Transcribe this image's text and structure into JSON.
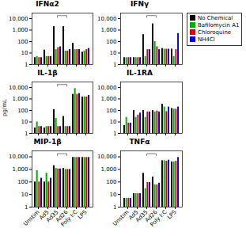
{
  "chart_data": [
    {
      "type": "bar",
      "title": "IFNα2",
      "log": "y",
      "grid": false,
      "tick_labels": "y",
      "categories": [
        "Unstim",
        "Ad5",
        "Ad35",
        "Ad26",
        "Poly I:C",
        "LPS"
      ],
      "series": [
        {
          "name": "No Chemical",
          "color": "#000000",
          "values": [
            4,
            18,
            2000,
            2000,
            70,
            12
          ]
        },
        {
          "name": "Bafilomycin A1",
          "color": "#00aa00",
          "values": [
            5,
            5,
            20,
            15,
            20,
            15
          ]
        },
        {
          "name": "Chloroquine",
          "color": "#dd0000",
          "values": [
            4,
            5,
            30,
            15,
            20,
            20
          ]
        },
        {
          "name": "NH4Cl",
          "color": "#0000dd",
          "values": [
            4,
            5,
            35,
            20,
            20,
            25
          ]
        }
      ],
      "ylim": [
        1,
        30000
      ],
      "yticks": [
        1,
        10,
        100,
        {
          "value": 1000,
          "label": "1,000"
        },
        {
          "value": 10000,
          "label": "10,000"
        }
      ],
      "brackets": [
        [
          "Ad35",
          "Ad26"
        ]
      ]
    },
    {
      "type": "bar",
      "title": "IFNγ",
      "log": "y",
      "grid": false,
      "tick_labels": "y",
      "legend": "right",
      "categories": [
        "Unstim",
        "Ad5",
        "Ad35",
        "Ad26",
        "Poly I:C",
        "LPS"
      ],
      "series": [
        {
          "name": "No Chemical",
          "color": "#000000",
          "values": [
            4,
            4,
            400,
            3500,
            25,
            22
          ]
        },
        {
          "name": "Bafilomycin A1",
          "color": "#00aa00",
          "values": [
            4,
            4,
            5,
            100,
            22,
            5
          ]
        },
        {
          "name": "Chloroquine",
          "color": "#dd0000",
          "values": [
            4,
            4,
            20,
            35,
            22,
            20
          ]
        },
        {
          "name": "NH4Cl",
          "color": "#0000dd",
          "values": [
            4,
            4,
            20,
            20,
            22,
            500
          ]
        }
      ],
      "ylim": [
        1,
        30000
      ],
      "yticks": [
        1,
        10,
        100,
        {
          "value": 1000,
          "label": "1,000"
        },
        {
          "value": 10000,
          "label": "10,000"
        }
      ],
      "brackets": [
        [
          "Ad35",
          "Ad26"
        ]
      ]
    },
    {
      "type": "bar",
      "title": "IL-1β",
      "ylabel": "pg/mL",
      "log": "y",
      "grid": false,
      "tick_labels": "y",
      "categories": [
        "Unstim",
        "Ad5",
        "Ad35",
        "Ad26",
        "Poly I:C",
        "LPS"
      ],
      "series": [
        {
          "name": "No Chemical",
          "color": "#000000",
          "values": [
            3,
            3,
            120,
            30,
            2500,
            1500
          ]
        },
        {
          "name": "Bafilomycin A1",
          "color": "#00aa00",
          "values": [
            10,
            4,
            20,
            4,
            8000,
            1500
          ]
        },
        {
          "name": "Chloroquine",
          "color": "#dd0000",
          "values": [
            4,
            4,
            4,
            4,
            2500,
            1500
          ]
        },
        {
          "name": "NH4Cl",
          "color": "#0000dd",
          "values": [
            4,
            4,
            4,
            4,
            3000,
            2000
          ]
        }
      ],
      "ylim": [
        1,
        30000
      ],
      "yticks": [
        1,
        10,
        100,
        {
          "value": 1000,
          "label": "1,000"
        },
        {
          "value": 10000,
          "label": "10,000"
        }
      ],
      "brackets": [
        [
          "Ad35",
          "Ad26"
        ]
      ]
    },
    {
      "type": "bar",
      "title": "IL-1RA",
      "log": "y",
      "grid": false,
      "tick_labels": "y",
      "categories": [
        "Unstim",
        "Ad5",
        "Ad35",
        "Ad26",
        "Poly I:C",
        "LPS"
      ],
      "series": [
        {
          "name": "No Chemical",
          "color": "#000000",
          "values": [
            5,
            100,
            100,
            100,
            350,
            150
          ]
        },
        {
          "name": "Bafilomycin A1",
          "color": "#00aa00",
          "values": [
            25,
            25,
            25,
            75,
            200,
            130
          ]
        },
        {
          "name": "Chloroquine",
          "color": "#dd0000",
          "values": [
            8,
            40,
            75,
            90,
            80,
            130
          ]
        },
        {
          "name": "NH4Cl",
          "color": "#0000dd",
          "values": [
            8,
            60,
            75,
            75,
            200,
            200
          ]
        }
      ],
      "ylim": [
        1,
        30000
      ],
      "yticks": [
        1,
        10,
        100,
        {
          "value": 1000,
          "label": "1,000"
        },
        {
          "value": 10000,
          "label": "10,000"
        }
      ]
    },
    {
      "type": "bar",
      "title": "MIP-1β",
      "log": "y",
      "grid": false,
      "categories": [
        "Unstim",
        "Ad5",
        "Ad35",
        "Ad26",
        "Poly I:C",
        "LPS"
      ],
      "series": [
        {
          "name": "No Chemical",
          "color": "#000000",
          "values": [
            100,
            100,
            2000,
            1200,
            9000,
            9000
          ]
        },
        {
          "name": "Bafilomycin A1",
          "color": "#00aa00",
          "values": [
            800,
            500,
            1200,
            1000,
            9000,
            9000
          ]
        },
        {
          "name": "Chloroquine",
          "color": "#dd0000",
          "values": [
            100,
            100,
            1100,
            1000,
            9000,
            9000
          ]
        },
        {
          "name": "NH4Cl",
          "color": "#0000dd",
          "values": [
            200,
            200,
            1100,
            1000,
            9000,
            9000
          ]
        }
      ],
      "ylim": [
        1,
        30000
      ],
      "yticks": [
        1,
        10,
        100,
        {
          "value": 1000,
          "label": "1,000"
        },
        {
          "value": 10000,
          "label": "10,000"
        }
      ],
      "brackets": [
        [
          "Ad35",
          "Ad26"
        ]
      ]
    },
    {
      "type": "bar",
      "title": "TNFα",
      "log": "y",
      "grid": false,
      "categories": [
        "Unstim",
        "Ad5",
        "Ad35",
        "Ad26",
        "Poly I:C",
        "LPS"
      ],
      "series": [
        {
          "name": "No Chemical",
          "color": "#000000",
          "values": [
            5,
            12,
            500,
            250,
            5000,
            4000
          ]
        },
        {
          "name": "Bafilomycin A1",
          "color": "#00aa00",
          "values": [
            5,
            12,
            30,
            60,
            5000,
            4000
          ]
        },
        {
          "name": "Chloroquine",
          "color": "#dd0000",
          "values": [
            5,
            12,
            90,
            60,
            4500,
            4500
          ]
        },
        {
          "name": "NH4Cl",
          "color": "#0000dd",
          "values": [
            5,
            12,
            90,
            80,
            5500,
            9000
          ]
        }
      ],
      "ylim": [
        1,
        30000
      ],
      "yticks": [
        1,
        10,
        100,
        {
          "value": 1000,
          "label": "1,000"
        },
        {
          "value": 10000,
          "label": "10,000"
        }
      ],
      "brackets": [
        [
          "Ad35",
          "Ad26"
        ]
      ]
    }
  ]
}
